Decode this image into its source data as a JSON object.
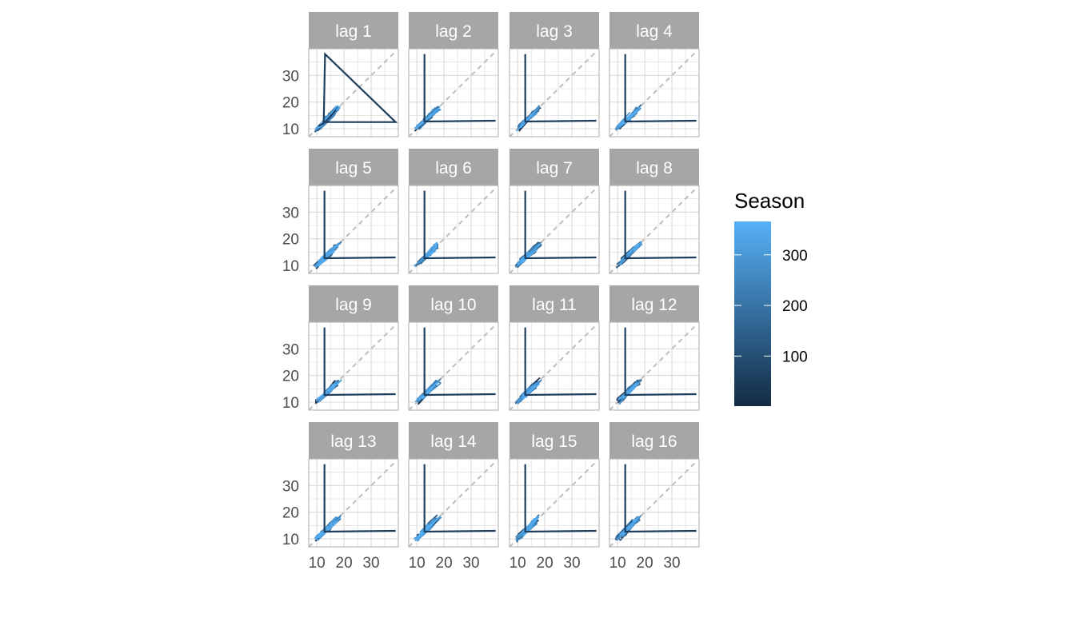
{
  "chart_data": {
    "type": "scatter",
    "title": "",
    "xlabel": "",
    "ylabel": "",
    "xlim": [
      7,
      40
    ],
    "ylim": [
      7,
      40
    ],
    "x_ticks": [
      10,
      20,
      30
    ],
    "y_ticks": [
      10,
      20,
      30
    ],
    "x_tick_labels": [
      "10",
      "20",
      "30"
    ],
    "y_tick_labels": [
      "10",
      "20",
      "30"
    ],
    "grid": true,
    "reference_line": "y = x (dashed)",
    "panels": [
      {
        "label": "lag 1",
        "extra_trace": [
          [
            10.5,
            11
          ],
          [
            12.5,
            12
          ],
          [
            13,
            38
          ],
          [
            39,
            12.5
          ],
          [
            13,
            12.5
          ],
          [
            14,
            13.5
          ],
          [
            17,
            17
          ]
        ]
      },
      {
        "label": "lag 2"
      },
      {
        "label": "lag 3"
      },
      {
        "label": "lag 4"
      },
      {
        "label": "lag 5"
      },
      {
        "label": "lag 6"
      },
      {
        "label": "lag 7"
      },
      {
        "label": "lag 8"
      },
      {
        "label": "lag 9"
      },
      {
        "label": "lag 10"
      },
      {
        "label": "lag 11"
      },
      {
        "label": "lag 12"
      },
      {
        "label": "lag 13"
      },
      {
        "label": "lag 14"
      },
      {
        "label": "lag 15"
      },
      {
        "label": "lag 16"
      }
    ],
    "outlier": {
      "value": 38,
      "baseline": 12.5
    },
    "cluster_range": [
      9.5,
      18.5
    ],
    "legend": {
      "title": "Season",
      "position": "right",
      "min": 1,
      "max": 366,
      "ticks": [
        100,
        200,
        300
      ],
      "tick_labels": [
        "100",
        "200",
        "300"
      ],
      "color_low": "#132B43",
      "color_high": "#56B1F7"
    },
    "colors": {
      "strip_bg": "#a6a6a6",
      "strip_text": "#ffffff",
      "grid": "#d9d9d9",
      "panel_border": "#b3b3b3",
      "reference_line": "#bdbdbd",
      "axis_text": "#4d4d4d"
    }
  }
}
